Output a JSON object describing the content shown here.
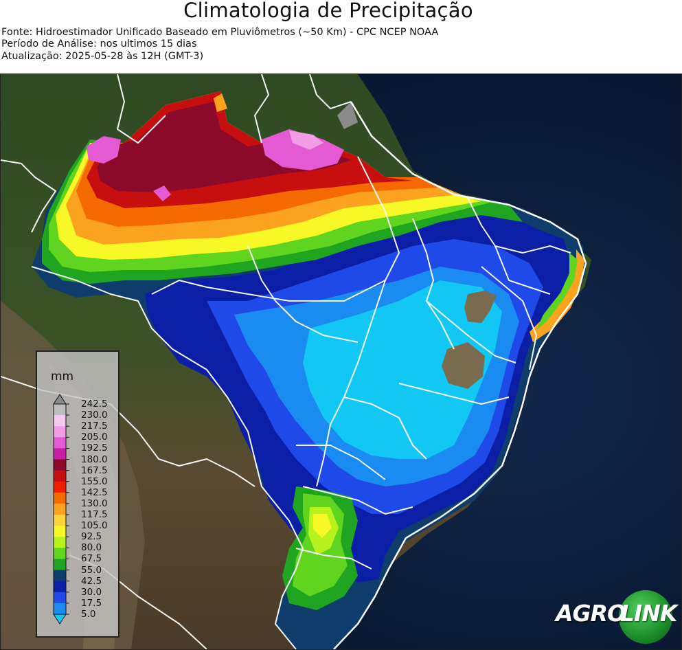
{
  "header": {
    "title": "Climatologia de Precipitação",
    "source": "Fonte: Hidroestimador Unificado Baseado em Pluviômetros (~50 Km) - CPC NCEP NOAA",
    "period": "Período de Análise: nos ultimos 15 dias",
    "updated": "Atualização: 2025-05-28 às 12H (GMT-3)"
  },
  "legend": {
    "unit": "mm",
    "ticks": [
      "242.5",
      "230.0",
      "217.5",
      "205.0",
      "192.5",
      "180.0",
      "167.5",
      "155.0",
      "142.5",
      "130.0",
      "117.5",
      "105.0",
      "92.5",
      "80.0",
      "67.5",
      "55.0",
      "42.5",
      "30.0",
      "17.5",
      "5.0"
    ],
    "colors": [
      "#8a8a8a",
      "#bdbdbd",
      "#f3c9f0",
      "#f39ce6",
      "#e35ad2",
      "#c71fa8",
      "#8b0a2a",
      "#c70f0f",
      "#f01e00",
      "#f56a00",
      "#fba21f",
      "#fbd33b",
      "#f8f826",
      "#b8f21e",
      "#5fd51f",
      "#1fa51f",
      "#0f3d6b",
      "#0b1fa6",
      "#1f49e9",
      "#1a8bf0",
      "#13c7f5"
    ]
  },
  "logo": {
    "part1": "AGRO",
    "part2": "LINK",
    "colors": {
      "green": "#1b8d2a",
      "white": "#ffffff"
    }
  }
}
